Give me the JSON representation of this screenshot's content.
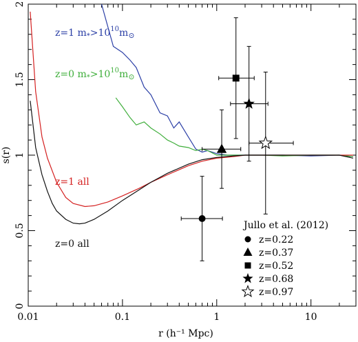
{
  "chart_data": {
    "type": "line",
    "xlabel": "r (h⁻¹ Mpc)",
    "ylabel": "s(r)",
    "xscale": "log",
    "xlim": [
      0.01,
      30
    ],
    "ylim": [
      0,
      2
    ],
    "x_tick_labels": [
      "0.01",
      "0.1",
      "1",
      "10"
    ],
    "x_tick_values": [
      0.01,
      0.1,
      1,
      10
    ],
    "y_tick_labels": [
      "0",
      "0.5",
      "1",
      "1.5",
      "2"
    ],
    "y_tick_values": [
      0,
      0.5,
      1,
      1.5,
      2
    ],
    "series": [
      {
        "name": "z=1 m*>10¹⁰m⊙",
        "color": "#2b3fa6",
        "x": [
          0.06,
          0.08,
          0.1,
          0.12,
          0.14,
          0.17,
          0.2,
          0.25,
          0.3,
          0.35,
          0.4,
          0.5,
          0.6,
          0.7,
          0.8,
          1.0,
          1.3,
          2,
          3,
          5,
          10,
          20,
          28
        ],
        "y": [
          2.0,
          1.72,
          1.68,
          1.63,
          1.58,
          1.45,
          1.4,
          1.28,
          1.26,
          1.18,
          1.22,
          1.12,
          1.04,
          1.02,
          1.03,
          1.01,
          1.0,
          1.0,
          1.0,
          1.0,
          0.995,
          1.0,
          0.99
        ]
      },
      {
        "name": "z=0 m*>10¹⁰m⊙",
        "color": "#3fae3b",
        "x": [
          0.085,
          0.1,
          0.12,
          0.14,
          0.17,
          0.2,
          0.25,
          0.3,
          0.35,
          0.4,
          0.5,
          0.6,
          0.7,
          0.8,
          1.0,
          1.3,
          2,
          3,
          5,
          10,
          20,
          28
        ],
        "y": [
          1.38,
          1.32,
          1.25,
          1.2,
          1.22,
          1.18,
          1.14,
          1.1,
          1.08,
          1.06,
          1.05,
          1.03,
          1.04,
          1.03,
          1.0,
          1.0,
          1.0,
          1.0,
          0.995,
          1.0,
          1.0,
          0.99
        ]
      },
      {
        "name": "z=1 all",
        "color": "#d42020",
        "x": [
          0.0105,
          0.012,
          0.014,
          0.016,
          0.02,
          0.025,
          0.03,
          0.04,
          0.05,
          0.07,
          0.1,
          0.15,
          0.2,
          0.3,
          0.5,
          0.7,
          1.0,
          1.5,
          2,
          3,
          5,
          10,
          20,
          28
        ],
        "y": [
          1.95,
          1.42,
          1.12,
          0.98,
          0.82,
          0.72,
          0.68,
          0.66,
          0.665,
          0.69,
          0.73,
          0.78,
          0.82,
          0.87,
          0.93,
          0.96,
          0.98,
          0.99,
          1.0,
          1.0,
          1.0,
          1.0,
          1.0,
          1.0
        ]
      },
      {
        "name": "z=0 all",
        "color": "#111111",
        "x": [
          0.0105,
          0.012,
          0.014,
          0.016,
          0.018,
          0.02,
          0.025,
          0.03,
          0.035,
          0.04,
          0.05,
          0.07,
          0.1,
          0.15,
          0.2,
          0.3,
          0.5,
          0.7,
          1.0,
          1.5,
          2,
          3,
          5,
          10,
          20,
          28
        ],
        "y": [
          1.36,
          1.05,
          0.87,
          0.76,
          0.68,
          0.63,
          0.575,
          0.55,
          0.545,
          0.55,
          0.575,
          0.63,
          0.7,
          0.77,
          0.82,
          0.88,
          0.94,
          0.97,
          0.985,
          0.995,
          1.0,
          1.0,
          1.0,
          1.0,
          1.0,
          0.98
        ]
      }
    ],
    "points": {
      "title": "Jullo et al. (2012)",
      "items": [
        {
          "label": "z=0.22",
          "marker": "circle",
          "x": 0.7,
          "y": 0.58,
          "xlo": 0.42,
          "xhi": 1.15,
          "ylo": 0.3,
          "yhi": 0.86
        },
        {
          "label": "z=0.37",
          "marker": "triangle",
          "x": 1.13,
          "y": 1.04,
          "xlo": 0.7,
          "xhi": 1.8,
          "ylo": 0.78,
          "yhi": 1.3
        },
        {
          "label": "z=0.52",
          "marker": "square",
          "x": 1.6,
          "y": 1.51,
          "xlo": 1.05,
          "xhi": 2.5,
          "ylo": 1.11,
          "yhi": 1.91
        },
        {
          "label": "z=0.68",
          "marker": "star",
          "x": 2.2,
          "y": 1.34,
          "xlo": 1.4,
          "xhi": 3.5,
          "ylo": 0.96,
          "yhi": 1.72
        },
        {
          "label": "z=0.97",
          "marker": "star-open",
          "x": 3.3,
          "y": 1.08,
          "xlo": 2.2,
          "xhi": 6.5,
          "ylo": 0.61,
          "yhi": 1.55
        }
      ]
    },
    "legend_placement": "bottom-right",
    "grid": false
  }
}
